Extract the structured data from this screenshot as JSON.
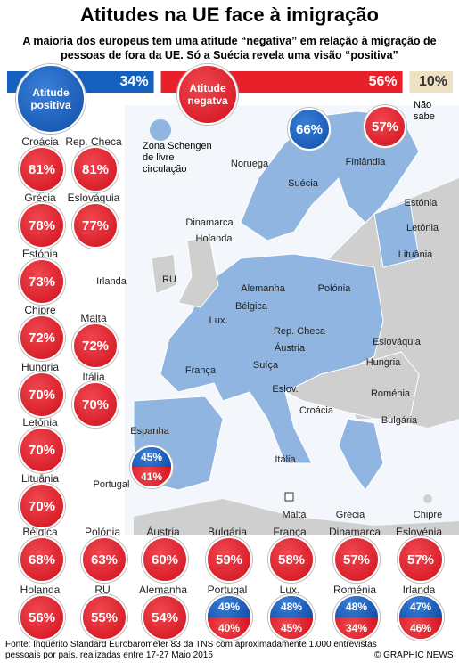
{
  "header": {
    "title": "Atitudes na UE face à imigração",
    "subtitle": "A maioria dos europeus tem uma atitude “negativa” em relação à migração de pessoas de fora da UE. Só a Suécia revela uma visão “positiva”"
  },
  "summary": {
    "positive": {
      "name": "Atitude positiva",
      "value": 34,
      "label": "34%"
    },
    "negative": {
      "name": "Atitude negatva",
      "value": 56,
      "label": "56%"
    },
    "dont_know": {
      "name": "Não sabe",
      "value": 10,
      "label": "10%"
    }
  },
  "legend": "Zona Schengen de livre circulação",
  "countries": [
    {
      "name": "Croácia",
      "negative": "81%"
    },
    {
      "name": "Rep. Checa",
      "negative": "81%"
    },
    {
      "name": "Grécia",
      "negative": "78%"
    },
    {
      "name": "Eslováquia",
      "negative": "77%"
    },
    {
      "name": "Estónia",
      "negative": "73%"
    },
    {
      "name": "Chipre",
      "negative": "72%"
    },
    {
      "name": "Malta",
      "negative": "72%"
    },
    {
      "name": "Hungria",
      "negative": "70%"
    },
    {
      "name": "Itália",
      "negative": "70%"
    },
    {
      "name": "Letónia",
      "negative": "70%"
    },
    {
      "name": "Lituânia",
      "negative": "70%"
    },
    {
      "name": "Bélgica",
      "negative": "68%"
    },
    {
      "name": "Polónia",
      "negative": "63%"
    },
    {
      "name": "Áustria",
      "negative": "60%"
    },
    {
      "name": "Bulgária",
      "negative": "59%"
    },
    {
      "name": "França",
      "negative": "58%"
    },
    {
      "name": "Dinamarca",
      "negative": "57%"
    },
    {
      "name": "Eslovénia",
      "negative": "57%"
    },
    {
      "name": "Holanda",
      "negative": "56%"
    },
    {
      "name": "RU",
      "negative": "55%"
    },
    {
      "name": "Alemanha",
      "negative": "54%"
    },
    {
      "name": "Portugal",
      "positive": "49%",
      "negative": "40%"
    },
    {
      "name": "Lux.",
      "positive": "48%",
      "negative": "45%"
    },
    {
      "name": "Roménia",
      "positive": "48%",
      "negative": "34%"
    },
    {
      "name": "Irlanda",
      "positive": "47%",
      "negative": "46%"
    }
  ],
  "map_values": [
    {
      "positive": "66%"
    },
    {
      "negative": "57%"
    },
    {
      "positive": "45%",
      "negative": "41%"
    }
  ],
  "map_labels": [
    "Noruega",
    "Suécia",
    "Finlândia",
    "Estónia",
    "Letónia",
    "Lituânia",
    "Dinamarca",
    "Holanda",
    "RU",
    "Irlanda",
    "Alemanha",
    "Polónia",
    "Bélgica",
    "Lux.",
    "Rep. Checa",
    "Eslováquia",
    "Áustria",
    "Hungria",
    "França",
    "Suíça",
    "Eslov.",
    "Roménia",
    "Croácia",
    "Bulgária",
    "Espanha",
    "Portugal",
    "Itália",
    "Malta",
    "Grécia",
    "Chipre"
  ],
  "footer": {
    "source": "Fonte: Inquérito Standard Eurobarometer 83 da TNS com aproximadamente 1.000 entrevistas pessoais por país, realizadas entre 17-27 Maio 2015",
    "credit": "© GRAPHIC NEWS"
  }
}
